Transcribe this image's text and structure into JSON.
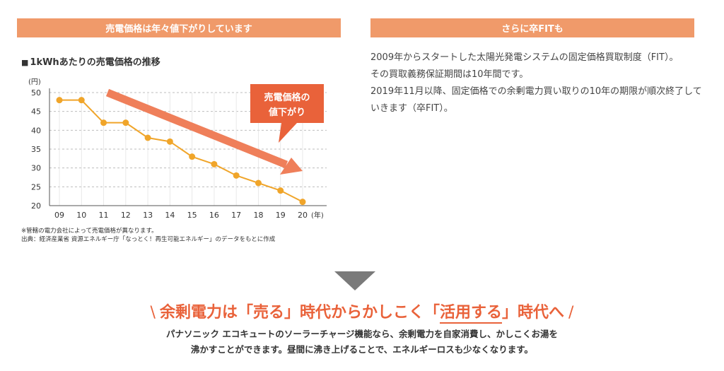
{
  "left_banner": "売電価格は年々値下がりしています",
  "right_banner": "さらに卒FITも",
  "chart_title": "1kWhあたりの売電価格の推移",
  "chart_title_marker": "■",
  "chart_data": {
    "type": "line",
    "title": "1kWhあたりの売電価格の推移",
    "y_unit": "(円)",
    "x_unit": "(年)",
    "categories": [
      "09",
      "10",
      "11",
      "12",
      "13",
      "14",
      "15",
      "16",
      "17",
      "18",
      "19",
      "20"
    ],
    "ylim": [
      20,
      50
    ],
    "yticks": [
      "50",
      "45",
      "40",
      "35",
      "30",
      "25",
      "20"
    ],
    "grid": true,
    "series": [
      {
        "values": [
          48,
          48,
          42,
          42,
          38,
          37,
          33,
          31,
          28,
          26,
          24,
          21
        ],
        "color": "#f0a52a"
      }
    ],
    "annotation": {
      "line1": "売電価格の",
      "line2": "値下がり",
      "color": "#e9623a"
    },
    "trend_arrow_color": "#ef7f5a"
  },
  "notes": [
    "※管轄の電力会社によって売電価格が異なります。",
    "出典：経済産業省 資源エネルギー庁「なっとく！再生可能エネルギー」のデータをもとに作成"
  ],
  "description": [
    "2009年からスタートした太陽光発電システムの固定価格買取制度（FIT）。",
    "その買取義務保証期間は10年間です。",
    "2019年11月以降、固定価格での余剰電力買い取りの10年の期限が順次終了していきます（卒FIT）。"
  ],
  "headline": {
    "slash_left": "\\",
    "part1": "余剰電力は「売る」時代からかしこく「",
    "emphasis": "活用する",
    "part2": "」時代へ",
    "slash_right": "/"
  },
  "subtext": [
    "パナソニック エコキュートのソーラーチャージ機能なら、余剰電力を自家消費し、かしこくお湯を",
    "沸かすことができます。昼間に沸き上げることで、エネルギーロスも少なくなります。"
  ],
  "colors": {
    "banner": "#f09a6a",
    "accent": "#e9623a",
    "line": "#f0a52a",
    "arrow": "#7a7a7a"
  }
}
